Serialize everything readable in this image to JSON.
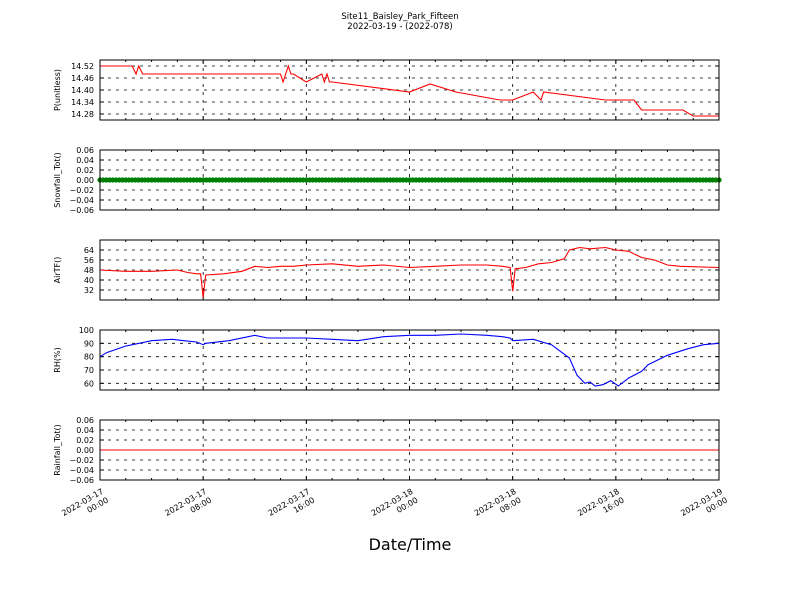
{
  "figure": {
    "title": "Site11_Baisley_Park_Fifteen",
    "subtitle": "2022-03-19 - (2022-078)",
    "xlabel": "Date/Time"
  },
  "x_axis": {
    "range": [
      "2022-03-17 00:00",
      "2022-03-19 00:00"
    ],
    "ticks": [
      {
        "value": "2022-03-17 00:00",
        "line1": "2022-03-17",
        "line2": "00:00"
      },
      {
        "value": "2022-03-17 08:00",
        "line1": "2022-03-17",
        "line2": "08:00"
      },
      {
        "value": "2022-03-17 16:00",
        "line1": "2022-03-17",
        "line2": "16:00"
      },
      {
        "value": "2022-03-18 00:00",
        "line1": "2022-03-18",
        "line2": "00:00"
      },
      {
        "value": "2022-03-18 08:00",
        "line1": "2022-03-18",
        "line2": "08:00"
      },
      {
        "value": "2022-03-18 16:00",
        "line1": "2022-03-18",
        "line2": "16:00"
      },
      {
        "value": "2022-03-19 00:00",
        "line1": "2022-03-19",
        "line2": "00:00"
      }
    ]
  },
  "chart_data": [
    {
      "type": "line",
      "ylabel": "P(unitless)",
      "ylim": [
        14.25,
        14.55
      ],
      "yticks": [
        "14.28",
        "14.34",
        "14.40",
        "14.46",
        "14.52"
      ],
      "grid": true,
      "color": "#ff0000",
      "markers": false,
      "x": [
        "2022-03-17 00:00",
        "2022-03-17 02:30",
        "2022-03-17 02:48",
        "2022-03-17 03:00",
        "2022-03-17 03:18",
        "2022-03-17 03:24",
        "2022-03-17 14:00",
        "2022-03-17 14:12",
        "2022-03-17 14:36",
        "2022-03-17 14:48",
        "2022-03-17 15:00",
        "2022-03-17 16:00",
        "2022-03-17 17:12",
        "2022-03-17 17:24",
        "2022-03-17 17:36",
        "2022-03-17 17:48",
        "2022-03-17 18:00",
        "2022-03-18 00:00",
        "2022-03-18 01:36",
        "2022-03-18 03:36",
        "2022-03-18 07:00",
        "2022-03-18 08:00",
        "2022-03-18 09:36",
        "2022-03-18 10:12",
        "2022-03-18 10:24",
        "2022-03-18 15:12",
        "2022-03-18 17:24",
        "2022-03-18 18:00",
        "2022-03-18 21:12",
        "2022-03-18 22:00",
        "2022-03-19 00:00"
      ],
      "y": [
        14.52,
        14.52,
        14.48,
        14.52,
        14.48,
        14.48,
        14.48,
        14.44,
        14.52,
        14.48,
        14.48,
        14.44,
        14.48,
        14.44,
        14.48,
        14.44,
        14.44,
        14.39,
        14.43,
        14.39,
        14.35,
        14.35,
        14.39,
        14.35,
        14.39,
        14.35,
        14.35,
        14.3,
        14.3,
        14.27,
        14.27
      ]
    },
    {
      "type": "scatter",
      "ylabel": "Snowfall_Tot()",
      "ylim": [
        -0.06,
        0.06
      ],
      "yticks": [
        "−0.06",
        "−0.04",
        "−0.02",
        "0.00",
        "0.02",
        "0.04",
        "0.06"
      ],
      "grid": true,
      "color": "#007f00",
      "markers": true,
      "x": [
        "2022-03-17 00:00",
        "2022-03-19 00:00"
      ],
      "y": [
        0,
        0
      ],
      "interval_minutes": 15
    },
    {
      "type": "line",
      "ylabel": "AirTF()",
      "ylim": [
        24,
        72
      ],
      "yticks": [
        "32",
        "40",
        "48",
        "56",
        "64"
      ],
      "grid": true,
      "color": "#ff0000",
      "markers": false,
      "x": [
        "2022-03-17 00:00",
        "2022-03-17 02:00",
        "2022-03-17 04:00",
        "2022-03-17 06:00",
        "2022-03-17 06:48",
        "2022-03-17 07:30",
        "2022-03-17 07:48",
        "2022-03-17 08:00",
        "2022-03-17 08:12",
        "2022-03-17 09:36",
        "2022-03-17 11:00",
        "2022-03-17 12:00",
        "2022-03-17 13:00",
        "2022-03-17 14:00",
        "2022-03-17 15:00",
        "2022-03-17 16:00",
        "2022-03-17 18:00",
        "2022-03-17 20:00",
        "2022-03-17 22:00",
        "2022-03-18 00:00",
        "2022-03-18 02:00",
        "2022-03-18 04:00",
        "2022-03-18 06:00",
        "2022-03-18 07:12",
        "2022-03-18 07:48",
        "2022-03-18 08:00",
        "2022-03-18 08:12",
        "2022-03-18 09:00",
        "2022-03-18 10:00",
        "2022-03-18 11:00",
        "2022-03-18 12:00",
        "2022-03-18 12:24",
        "2022-03-18 13:12",
        "2022-03-18 14:00",
        "2022-03-18 15:12",
        "2022-03-18 16:00",
        "2022-03-18 17:00",
        "2022-03-18 18:00",
        "2022-03-18 19:00",
        "2022-03-18 20:00",
        "2022-03-18 21:00",
        "2022-03-19 00:00"
      ],
      "y": [
        48,
        47,
        47,
        48,
        46,
        45,
        45,
        26,
        44,
        45,
        47,
        51,
        50,
        51,
        51,
        52,
        53,
        51,
        52,
        50,
        51,
        52,
        52,
        51,
        50,
        31,
        49,
        50,
        53,
        54,
        57,
        64,
        66,
        65,
        66,
        64,
        63,
        58,
        56,
        52,
        51,
        50
      ]
    },
    {
      "type": "line",
      "ylabel": "RH(%)",
      "ylim": [
        55,
        100
      ],
      "yticks": [
        "60",
        "70",
        "80",
        "90",
        "100"
      ],
      "grid": true,
      "color": "#0000ff",
      "markers": false,
      "x": [
        "2022-03-17 00:00",
        "2022-03-17 00:30",
        "2022-03-17 02:00",
        "2022-03-17 04:00",
        "2022-03-17 05:36",
        "2022-03-17 06:30",
        "2022-03-17 07:30",
        "2022-03-17 08:00",
        "2022-03-17 08:12",
        "2022-03-17 10:00",
        "2022-03-17 12:00",
        "2022-03-17 13:00",
        "2022-03-17 14:00",
        "2022-03-17 16:00",
        "2022-03-17 18:00",
        "2022-03-17 20:00",
        "2022-03-17 22:00",
        "2022-03-18 00:00",
        "2022-03-18 02:00",
        "2022-03-18 04:00",
        "2022-03-18 06:00",
        "2022-03-18 07:12",
        "2022-03-18 07:48",
        "2022-03-18 08:00",
        "2022-03-18 09:36",
        "2022-03-18 11:00",
        "2022-03-18 12:24",
        "2022-03-18 13:00",
        "2022-03-18 13:36",
        "2022-03-18 14:00",
        "2022-03-18 14:24",
        "2022-03-18 15:00",
        "2022-03-18 15:36",
        "2022-03-18 16:12",
        "2022-03-18 17:00",
        "2022-03-18 18:00",
        "2022-03-18 18:30",
        "2022-03-18 20:00",
        "2022-03-18 21:36",
        "2022-03-18 22:48",
        "2022-03-19 00:00"
      ],
      "y": [
        80,
        83,
        88,
        92,
        93,
        92,
        91,
        89,
        90,
        92,
        96,
        94,
        94,
        94,
        93,
        92,
        95,
        96,
        96,
        97,
        96,
        95,
        94,
        92,
        93,
        89,
        79,
        66,
        60,
        61,
        58,
        59,
        62,
        58,
        64,
        69,
        74,
        81,
        86,
        89,
        90
      ]
    },
    {
      "type": "line",
      "ylabel": "Rainfall_Tot()",
      "ylim": [
        -0.06,
        0.06
      ],
      "yticks": [
        "−0.06",
        "−0.04",
        "−0.02",
        "0.00",
        "0.02",
        "0.04",
        "0.06"
      ],
      "grid": true,
      "color": "#ff0000",
      "markers": false,
      "x": [
        "2022-03-17 00:00",
        "2022-03-19 00:00"
      ],
      "y": [
        0,
        0
      ]
    }
  ]
}
